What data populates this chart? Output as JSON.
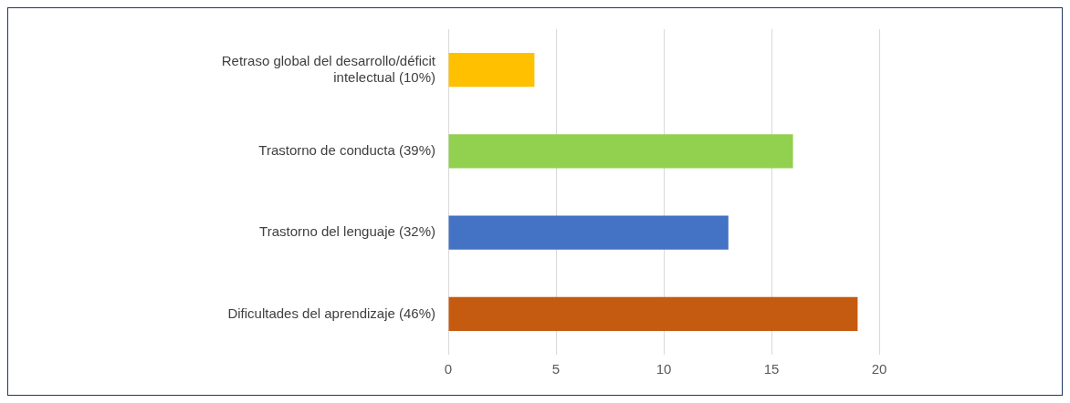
{
  "chart_data": {
    "type": "bar",
    "orientation": "horizontal",
    "categories": [
      "Retraso global del desarrollo/déficit intelectual (10%)",
      "Trastorno de conducta (39%)",
      "Trastorno del lenguaje (32%)",
      "Dificultades del aprendizaje (46%)"
    ],
    "values": [
      4,
      16,
      13,
      19
    ],
    "colors": [
      "#ffc000",
      "#92d050",
      "#4472c4",
      "#c55a11"
    ],
    "xlim": [
      0,
      20
    ],
    "xticks": [
      0,
      5,
      10,
      15,
      20
    ],
    "grid": "x",
    "legend": false
  }
}
